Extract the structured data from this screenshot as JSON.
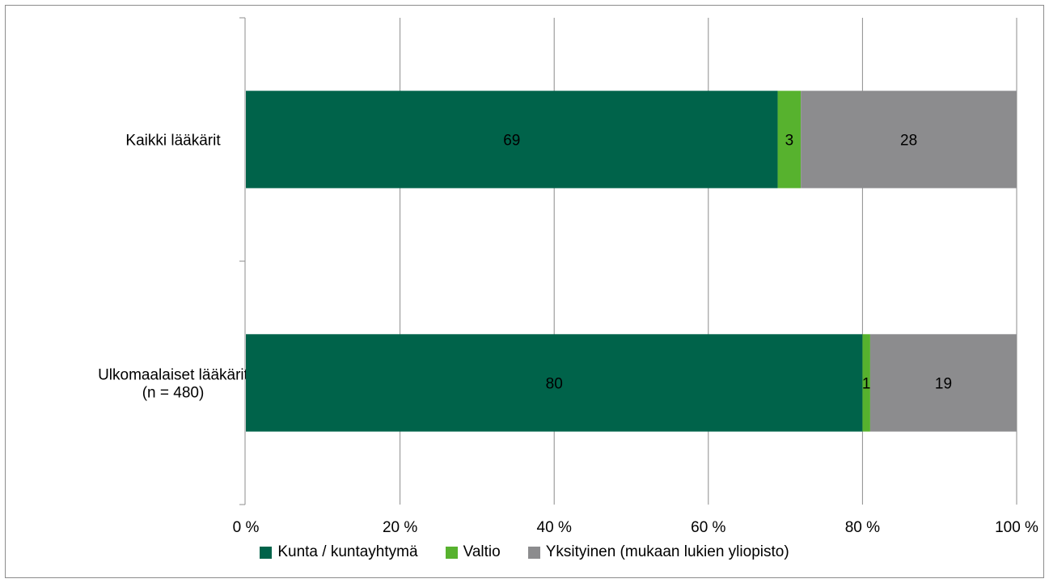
{
  "chart_data": {
    "type": "bar",
    "orientation": "horizontal",
    "stacked": true,
    "categories": [
      "Kaikki lääkärit",
      "Ulkomaalaiset lääkärit (n = 480)"
    ],
    "category_lines": [
      [
        "Kaikki lääkärit"
      ],
      [
        "Ulkomaalaiset lääkärit",
        "(n = 480)"
      ]
    ],
    "series": [
      {
        "name": "Kunta / kuntayhtymä",
        "values": [
          69,
          80
        ],
        "labels": [
          "69",
          "80"
        ],
        "color": "#00634a"
      },
      {
        "name": "Valtio",
        "values": [
          3,
          1
        ],
        "labels": [
          "3",
          "1"
        ],
        "color": "#57b22e"
      },
      {
        "name": "Yksityinen (mukaan lukien yliopisto)",
        "values": [
          28,
          19
        ],
        "labels": [
          "28",
          "19"
        ],
        "color": "#8c8c8e"
      }
    ],
    "xlim": [
      0,
      100
    ],
    "xticks": [
      "0 %",
      "20 %",
      "40 %",
      "60 %",
      "80 %",
      "100 %"
    ],
    "grid": true,
    "legend_position": "bottom"
  }
}
